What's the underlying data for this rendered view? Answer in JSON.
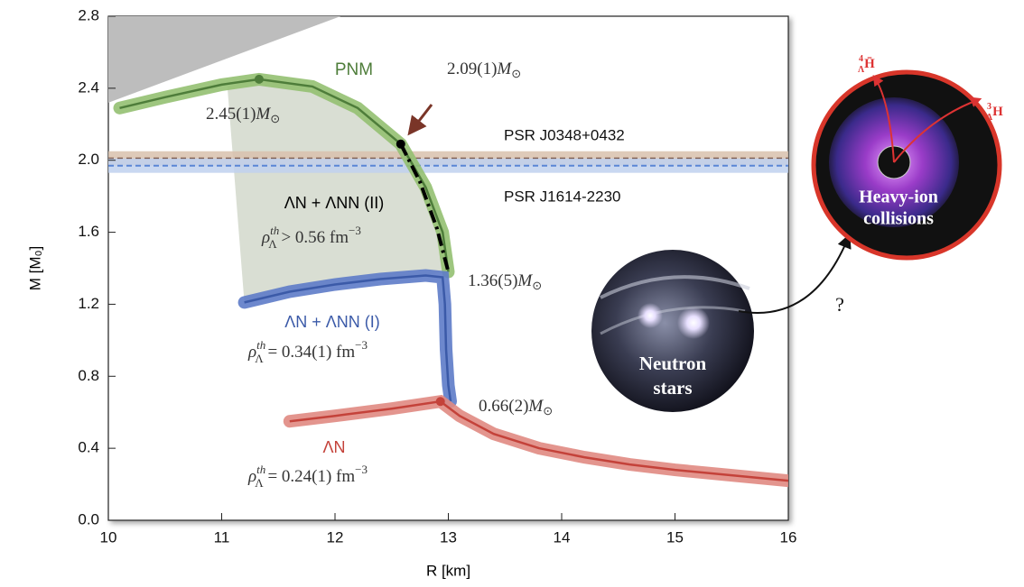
{
  "chart_data": {
    "type": "line",
    "xlabel": "R [km]",
    "ylabel": "M [M₀]",
    "xlim": [
      10,
      16
    ],
    "ylim": [
      0,
      2.8
    ],
    "xticks": [
      10,
      11,
      12,
      13,
      14,
      15,
      16
    ],
    "yticks": [
      {
        "value": 0,
        "label": "0.0"
      },
      0.4,
      0.8,
      1.2,
      1.6,
      {
        "value": 2,
        "label": "2.0"
      },
      2.4,
      2.8
    ],
    "regions": [
      {
        "x": [
          10,
          12.05,
          10
        ],
        "y": [
          2.8,
          2.8,
          2.32
        ],
        "color": "#bdbdbd"
      },
      {
        "x": [
          11.05,
          11.33,
          11.8,
          12.2,
          12.58,
          12.8,
          12.95,
          13.0,
          12.8,
          12.4,
          12.0,
          11.6,
          11.2
        ],
        "y": [
          2.41,
          2.45,
          2.41,
          2.29,
          2.09,
          1.85,
          1.6,
          1.38,
          1.36,
          1.34,
          1.31,
          1.27,
          1.21
        ],
        "color": "#d9ded3"
      }
    ],
    "bands": [
      {
        "name": "PSR J0348+0432",
        "value": 2.01,
        "error": 0.04,
        "color": "#6b3f2a",
        "fill": "#d8c1ad"
      },
      {
        "name": "PSR J1614-2230",
        "value": 1.97,
        "error": 0.04,
        "color": "#5a86d6",
        "fill": "#bfd1ef"
      }
    ],
    "series": [
      {
        "name": "PNM",
        "color": "#4e7d3a",
        "band_color": "#93c071",
        "x": [
          10.1,
          10.5,
          11.0,
          11.33,
          11.8,
          12.2,
          12.58,
          12.8,
          12.95,
          13.0
        ],
        "values": [
          2.29,
          2.35,
          2.42,
          2.45,
          2.41,
          2.29,
          2.09,
          1.85,
          1.6,
          1.38
        ],
        "marker": {
          "x": 11.33,
          "y": 2.45
        }
      },
      {
        "name": "ΛN + ΛNN (II)",
        "color": "#000000",
        "style": "dashdot",
        "x": [
          12.58,
          12.75,
          12.9,
          13.0
        ],
        "values": [
          2.09,
          1.88,
          1.62,
          1.38
        ],
        "marker": {
          "x": 12.58,
          "y": 2.09
        }
      },
      {
        "name": "ΛN + ΛNN (I)",
        "color": "#3b5aa8",
        "band_color": "#5d7bc8",
        "x": [
          11.2,
          11.6,
          12.0,
          12.4,
          12.8,
          12.95,
          12.97,
          12.98,
          13.0,
          13.02
        ],
        "values": [
          1.21,
          1.27,
          1.31,
          1.34,
          1.36,
          1.35,
          1.2,
          0.95,
          0.75,
          0.66
        ]
      },
      {
        "name": "ΛN",
        "color": "#c4423a",
        "band_color": "#e08a82",
        "x": [
          11.6,
          12.0,
          12.5,
          12.93,
          13.1,
          13.4,
          13.8,
          14.2,
          14.6,
          15.0,
          15.5,
          16.0
        ],
        "values": [
          0.55,
          0.58,
          0.62,
          0.66,
          0.58,
          0.48,
          0.4,
          0.35,
          0.31,
          0.28,
          0.25,
          0.22
        ],
        "marker": {
          "x": 12.93,
          "y": 0.66
        }
      }
    ],
    "annotations": [
      {
        "text": "2.45(1)",
        "unit": "M",
        "sub": "⊙"
      },
      {
        "text": "2.09(1)",
        "unit": "M",
        "sub": "⊙"
      },
      {
        "text": "1.36(5)",
        "unit": "M",
        "sub": "⊙"
      },
      {
        "text": "0.66(2)",
        "unit": "M",
        "sub": "⊙"
      }
    ],
    "thresholds": [
      {
        "symbol": "ρ",
        "sub": "Λ",
        "sup": "th",
        "text": " > 0.56 fm",
        "exp": "−3"
      },
      {
        "symbol": "ρ",
        "sub": "Λ",
        "sup": "th",
        "text": " = 0.34(1) fm",
        "exp": "−3"
      },
      {
        "symbol": "ρ",
        "sub": "Λ",
        "sup": "th",
        "text": " = 0.24(1) fm",
        "exp": "−3"
      }
    ]
  },
  "inset": {
    "neutron_stars": [
      "Neutron",
      "stars"
    ],
    "heavy_ion": [
      "Heavy-ion",
      "collisions"
    ],
    "question": "?",
    "hypernuclei": [
      {
        "sup": "4",
        "sub": "Λ",
        "base": "H̄"
      },
      {
        "sup": "3",
        "sub": "Λ",
        "base": "H"
      }
    ]
  }
}
